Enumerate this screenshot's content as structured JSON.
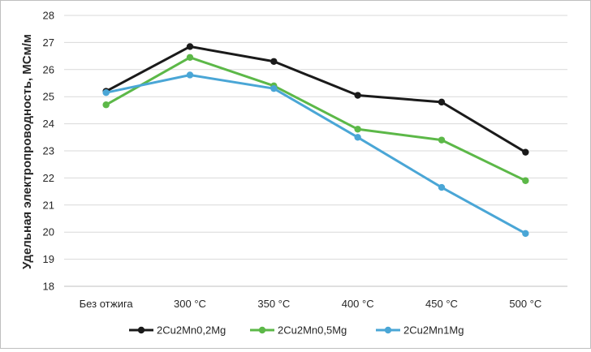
{
  "chart_data": {
    "type": "line",
    "title": "",
    "xlabel": "",
    "ylabel": "Удельная электропроводность, МСм/м",
    "categories": [
      "Без отжига",
      "300 °С",
      "350 °С",
      "400 °С",
      "450 °С",
      "500 °С"
    ],
    "ylim": [
      18,
      28
    ],
    "yticks": [
      "18",
      "19",
      "20",
      "21",
      "22",
      "23",
      "24",
      "25",
      "26",
      "27",
      "28"
    ],
    "grid": "horizontal",
    "legend_position": "bottom",
    "series": [
      {
        "name": "2Cu2Mn0,2Mg",
        "color": "#1a1a1a",
        "values": [
          25.2,
          26.85,
          26.3,
          25.05,
          24.8,
          22.95
        ]
      },
      {
        "name": "2Cu2Mn0,5Mg",
        "color": "#5cb848",
        "values": [
          24.7,
          26.45,
          25.4,
          23.8,
          23.4,
          21.9
        ]
      },
      {
        "name": "2Cu2Mn1Mg",
        "color": "#4aa6d6",
        "values": [
          25.15,
          25.8,
          25.3,
          23.5,
          21.65,
          19.95
        ]
      }
    ]
  }
}
